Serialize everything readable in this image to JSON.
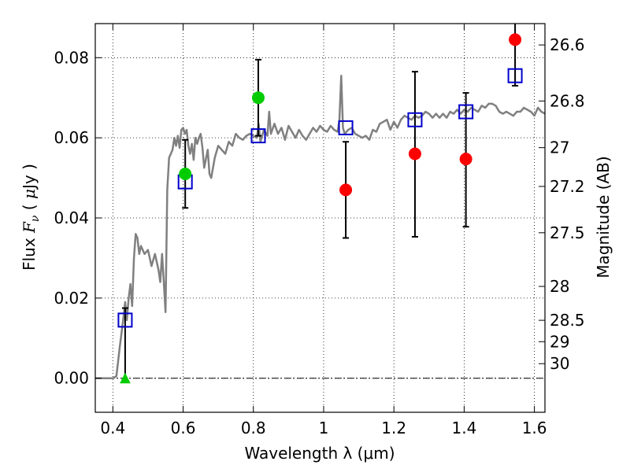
{
  "chart_data": {
    "type": "scatter",
    "xlabel": "Wavelength  λ (μm)",
    "ylabel": "Flux  F_ν  ( μJy )",
    "ylabel_parts": {
      "pre": "Flux  ",
      "var": "F",
      "sub": "ν",
      "mid": "  ( ",
      "mu": "μ",
      "post": "Jy )"
    },
    "y2label": "Magnitude (AB)",
    "xlim": [
      0.35,
      1.63
    ],
    "ylim": [
      -0.0085,
      0.0885
    ],
    "grid": true,
    "x_ticks": [
      {
        "value": 0.4,
        "label": "0.4"
      },
      {
        "value": 0.6,
        "label": "0.6"
      },
      {
        "value": 0.8,
        "label": "0.8"
      },
      {
        "value": 1.0,
        "label": "1"
      },
      {
        "value": 1.2,
        "label": "1.2"
      },
      {
        "value": 1.4,
        "label": "1.4"
      },
      {
        "value": 1.6,
        "label": "1.6"
      }
    ],
    "y_ticks": [
      {
        "value": 0.0,
        "label": "0.00"
      },
      {
        "value": 0.02,
        "label": "0.02"
      },
      {
        "value": 0.04,
        "label": "0.04"
      },
      {
        "value": 0.06,
        "label": "0.06"
      },
      {
        "value": 0.08,
        "label": "0.08"
      }
    ],
    "y2_ticks": [
      {
        "mag": 26.6,
        "label": "26.6"
      },
      {
        "mag": 26.8,
        "label": "26.8"
      },
      {
        "mag": 27.0,
        "label": "27"
      },
      {
        "mag": 27.2,
        "label": "27.2"
      },
      {
        "mag": 27.5,
        "label": "27.5"
      },
      {
        "mag": 28.0,
        "label": "28"
      },
      {
        "mag": 28.5,
        "label": "28.5"
      },
      {
        "mag": 29.0,
        "label": "29"
      },
      {
        "mag": 30.0,
        "label": "30"
      }
    ],
    "colors": {
      "model_line": "#808080",
      "observed_red": "#ff0000",
      "observed_green": "#00cc00",
      "model_box": "#0000cc",
      "errorbar": "#000000"
    },
    "model_spectrum": [
      [
        0.35,
        0.0
      ],
      [
        0.4,
        0.0
      ],
      [
        0.41,
        0.0005
      ],
      [
        0.42,
        0.008
      ],
      [
        0.43,
        0.015
      ],
      [
        0.435,
        0.019
      ],
      [
        0.44,
        0.0145
      ],
      [
        0.445,
        0.02
      ],
      [
        0.45,
        0.0235
      ],
      [
        0.455,
        0.018
      ],
      [
        0.46,
        0.03
      ],
      [
        0.465,
        0.036
      ],
      [
        0.47,
        0.035
      ],
      [
        0.475,
        0.031
      ],
      [
        0.48,
        0.033
      ],
      [
        0.49,
        0.031
      ],
      [
        0.5,
        0.032
      ],
      [
        0.51,
        0.028
      ],
      [
        0.52,
        0.031
      ],
      [
        0.53,
        0.027
      ],
      [
        0.535,
        0.024
      ],
      [
        0.54,
        0.031
      ],
      [
        0.545,
        0.024
      ],
      [
        0.55,
        0.0165
      ],
      [
        0.555,
        0.047
      ],
      [
        0.56,
        0.055
      ],
      [
        0.57,
        0.057
      ],
      [
        0.575,
        0.06
      ],
      [
        0.58,
        0.058
      ],
      [
        0.585,
        0.0605
      ],
      [
        0.59,
        0.0575
      ],
      [
        0.595,
        0.062
      ],
      [
        0.6,
        0.0625
      ],
      [
        0.605,
        0.061
      ],
      [
        0.61,
        0.062
      ],
      [
        0.615,
        0.058
      ],
      [
        0.62,
        0.056
      ],
      [
        0.625,
        0.0585
      ],
      [
        0.63,
        0.0545
      ],
      [
        0.635,
        0.06
      ],
      [
        0.64,
        0.0585
      ],
      [
        0.645,
        0.06
      ],
      [
        0.65,
        0.061
      ],
      [
        0.655,
        0.0575
      ],
      [
        0.66,
        0.0525
      ],
      [
        0.67,
        0.057
      ],
      [
        0.675,
        0.051
      ],
      [
        0.68,
        0.05
      ],
      [
        0.69,
        0.055
      ],
      [
        0.7,
        0.058
      ],
      [
        0.71,
        0.057
      ],
      [
        0.72,
        0.056
      ],
      [
        0.73,
        0.059
      ],
      [
        0.74,
        0.058
      ],
      [
        0.75,
        0.061
      ],
      [
        0.76,
        0.06
      ],
      [
        0.77,
        0.0595
      ],
      [
        0.78,
        0.0605
      ],
      [
        0.79,
        0.061
      ],
      [
        0.8,
        0.0605
      ],
      [
        0.81,
        0.06
      ],
      [
        0.815,
        0.0635
      ],
      [
        0.82,
        0.059
      ],
      [
        0.83,
        0.062
      ],
      [
        0.84,
        0.0605
      ],
      [
        0.845,
        0.0665
      ],
      [
        0.85,
        0.061
      ],
      [
        0.86,
        0.0635
      ],
      [
        0.87,
        0.061
      ],
      [
        0.88,
        0.0625
      ],
      [
        0.89,
        0.0595
      ],
      [
        0.9,
        0.063
      ],
      [
        0.91,
        0.0615
      ],
      [
        0.92,
        0.06
      ],
      [
        0.93,
        0.062
      ],
      [
        0.94,
        0.0605
      ],
      [
        0.95,
        0.0595
      ],
      [
        0.96,
        0.061
      ],
      [
        0.97,
        0.0625
      ],
      [
        0.98,
        0.0615
      ],
      [
        0.99,
        0.063
      ],
      [
        1.0,
        0.062
      ],
      [
        1.01,
        0.0615
      ],
      [
        1.02,
        0.063
      ],
      [
        1.03,
        0.062
      ],
      [
        1.04,
        0.0615
      ],
      [
        1.045,
        0.0645
      ],
      [
        1.05,
        0.0755
      ],
      [
        1.055,
        0.0625
      ],
      [
        1.06,
        0.061
      ],
      [
        1.07,
        0.062
      ],
      [
        1.08,
        0.0625
      ],
      [
        1.09,
        0.061
      ],
      [
        1.1,
        0.0605
      ],
      [
        1.11,
        0.06
      ],
      [
        1.12,
        0.0605
      ],
      [
        1.13,
        0.0595
      ],
      [
        1.14,
        0.062
      ],
      [
        1.15,
        0.0615
      ],
      [
        1.16,
        0.0635
      ],
      [
        1.17,
        0.064
      ],
      [
        1.18,
        0.0645
      ],
      [
        1.19,
        0.062
      ],
      [
        1.2,
        0.064
      ],
      [
        1.21,
        0.0625
      ],
      [
        1.22,
        0.0645
      ],
      [
        1.23,
        0.0655
      ],
      [
        1.24,
        0.065
      ],
      [
        1.25,
        0.0645
      ],
      [
        1.26,
        0.0655
      ],
      [
        1.27,
        0.065
      ],
      [
        1.28,
        0.0655
      ],
      [
        1.29,
        0.0665
      ],
      [
        1.3,
        0.066
      ],
      [
        1.31,
        0.065
      ],
      [
        1.32,
        0.066
      ],
      [
        1.33,
        0.065
      ],
      [
        1.34,
        0.066
      ],
      [
        1.35,
        0.065
      ],
      [
        1.36,
        0.0665
      ],
      [
        1.37,
        0.066
      ],
      [
        1.38,
        0.067
      ],
      [
        1.39,
        0.066
      ],
      [
        1.4,
        0.067
      ],
      [
        1.41,
        0.0665
      ],
      [
        1.42,
        0.0675
      ],
      [
        1.43,
        0.067
      ],
      [
        1.44,
        0.0665
      ],
      [
        1.45,
        0.068
      ],
      [
        1.46,
        0.0675
      ],
      [
        1.47,
        0.0685
      ],
      [
        1.48,
        0.0685
      ],
      [
        1.49,
        0.068
      ],
      [
        1.5,
        0.0665
      ],
      [
        1.51,
        0.066
      ],
      [
        1.52,
        0.0665
      ],
      [
        1.53,
        0.066
      ],
      [
        1.54,
        0.0655
      ],
      [
        1.55,
        0.0665
      ],
      [
        1.56,
        0.0665
      ],
      [
        1.57,
        0.0675
      ],
      [
        1.58,
        0.067
      ],
      [
        1.59,
        0.0665
      ],
      [
        1.6,
        0.0655
      ],
      [
        1.61,
        0.0675
      ],
      [
        1.62,
        0.0665
      ],
      [
        1.63,
        0.066
      ]
    ],
    "model_photometry": [
      {
        "x": 0.435,
        "y": 0.0145
      },
      {
        "x": 0.606,
        "y": 0.049
      },
      {
        "x": 0.814,
        "y": 0.0605
      },
      {
        "x": 1.063,
        "y": 0.0625
      },
      {
        "x": 1.26,
        "y": 0.0645
      },
      {
        "x": 1.405,
        "y": 0.0665
      },
      {
        "x": 1.545,
        "y": 0.0755
      }
    ],
    "observed_photometry": [
      {
        "x": 0.435,
        "y": 0.0,
        "yerr_low": 0.0,
        "yerr_high": 0.0175,
        "color": "green",
        "marker": "triangle"
      },
      {
        "x": 0.606,
        "y": 0.051,
        "yerr_low": 0.0425,
        "yerr_high": 0.0595,
        "color": "green",
        "marker": "circle"
      },
      {
        "x": 0.814,
        "y": 0.07,
        "yerr_low": 0.0605,
        "yerr_high": 0.0795,
        "color": "green",
        "marker": "circle"
      },
      {
        "x": 1.063,
        "y": 0.047,
        "yerr_low": 0.035,
        "yerr_high": 0.059,
        "color": "red",
        "marker": "circle"
      },
      {
        "x": 1.26,
        "y": 0.056,
        "yerr_low": 0.0353,
        "yerr_high": 0.0765,
        "color": "red",
        "marker": "circle"
      },
      {
        "x": 1.405,
        "y": 0.0547,
        "yerr_low": 0.0378,
        "yerr_high": 0.0712,
        "color": "red",
        "marker": "circle"
      },
      {
        "x": 1.545,
        "y": 0.0845,
        "yerr_low": 0.073,
        "yerr_high": 0.0885,
        "color": "red",
        "marker": "circle"
      }
    ]
  }
}
